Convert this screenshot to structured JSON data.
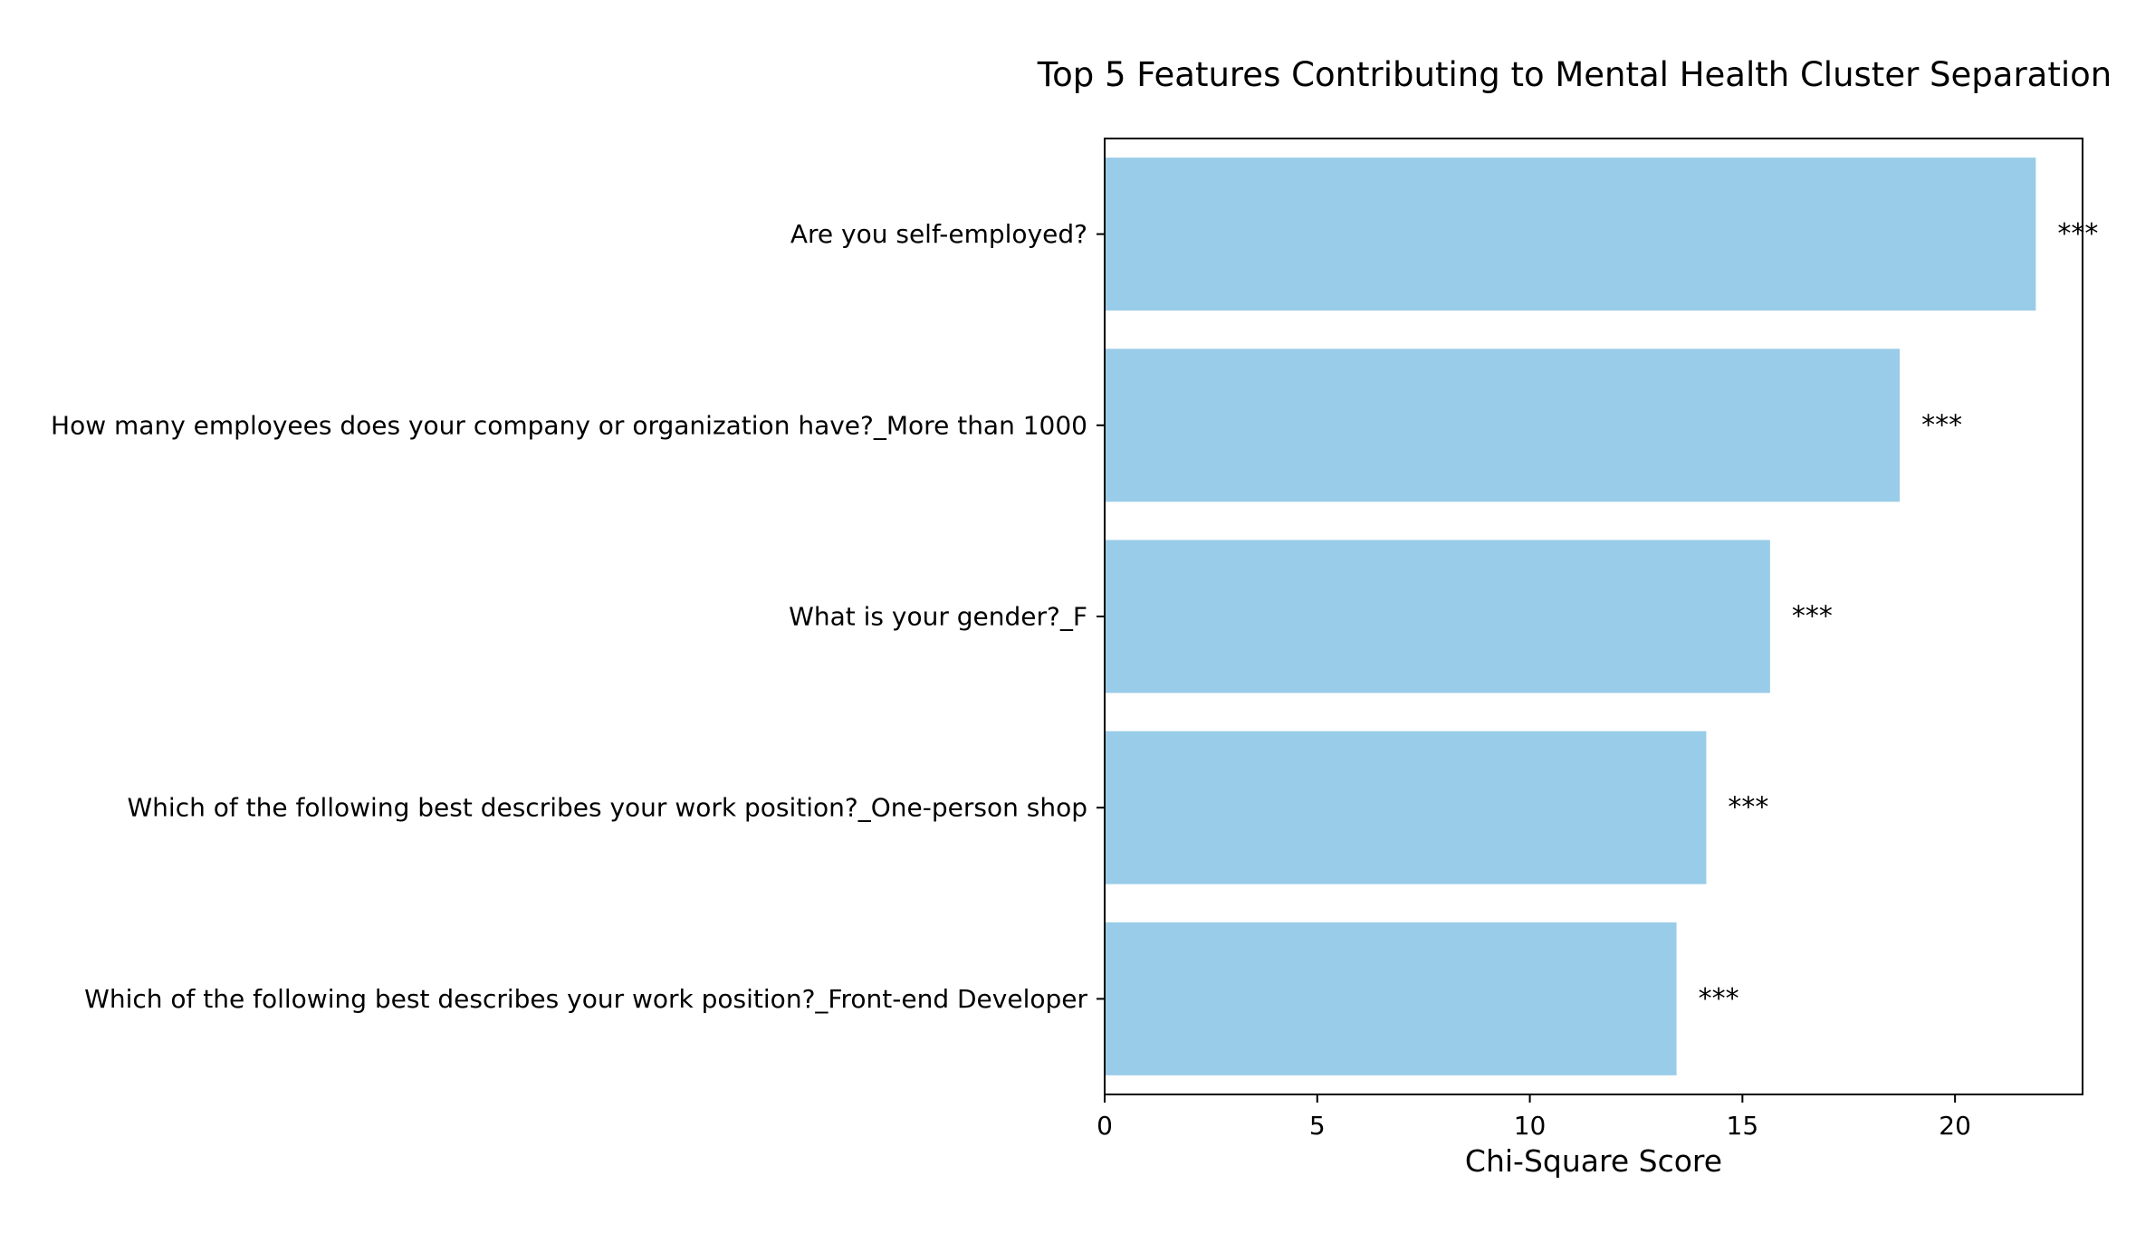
{
  "chart_data": {
    "type": "bar",
    "orientation": "horizontal",
    "title": "Top 5 Features Contributing to Mental Health Cluster Separation",
    "xlabel": "Chi-Square Score",
    "ylabel": "",
    "xlim": [
      0,
      23
    ],
    "xticks": [
      0,
      5,
      10,
      15,
      20
    ],
    "grid": false,
    "bar_color": "#99cce8",
    "categories": [
      "Are you self-employed?",
      "How many employees does your company or organization have?_More than 1000",
      "What is your gender?_F",
      "Which of the following best describes your work position?_One-person shop",
      "Which of the following best describes your work position?_Front-end Developer"
    ],
    "values": [
      21.9,
      18.7,
      15.65,
      14.15,
      13.45
    ],
    "annotations": [
      "***",
      "***",
      "***",
      "***",
      "***"
    ]
  }
}
